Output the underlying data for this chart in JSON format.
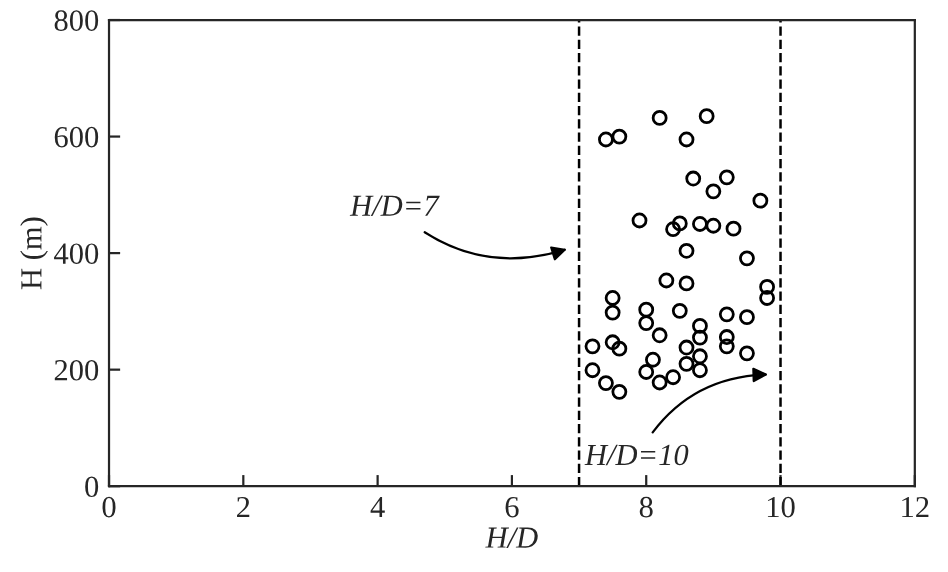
{
  "chart_data": {
    "type": "scatter",
    "xlabel": "H/D",
    "ylabel": "H (m)",
    "xlim": [
      0,
      12
    ],
    "ylim": [
      0,
      800
    ],
    "xticks": [
      0,
      2,
      4,
      6,
      8,
      10,
      12
    ],
    "yticks": [
      0,
      200,
      400,
      600,
      800
    ],
    "grid": false,
    "marker": "circle",
    "series": [
      {
        "color": "#000000",
        "x": [
          7.4,
          7.6,
          8.2,
          8.9,
          8.6,
          8.7,
          9.2,
          9.0,
          9.7,
          7.9,
          8.5,
          8.4,
          8.8,
          9.0,
          9.3,
          8.6,
          9.5,
          8.3,
          8.6,
          9.8,
          9.8,
          7.5,
          7.5,
          8.0,
          8.5,
          9.2,
          9.5,
          8.0,
          8.8,
          8.2,
          8.8,
          9.2,
          9.2,
          7.2,
          7.5,
          7.6,
          8.6,
          8.8,
          9.5,
          8.1,
          8.6,
          7.2,
          8.0,
          8.8,
          7.4,
          8.2,
          8.4,
          7.6
        ],
        "values": [
          595,
          600,
          632,
          635,
          595,
          528,
          530,
          506,
          490,
          456,
          451,
          441,
          450,
          447,
          442,
          404,
          391,
          353,
          348,
          342,
          323,
          323,
          298,
          303,
          301,
          295,
          290,
          280,
          275,
          259,
          255,
          256,
          240,
          240,
          247,
          236,
          238,
          223,
          228,
          217,
          210,
          199,
          196,
          199,
          177,
          178,
          187,
          162
        ]
      }
    ],
    "ref_lines": [
      {
        "axis": "x",
        "value": 7,
        "color": "#000000",
        "line_style": "dashed"
      },
      {
        "axis": "x",
        "value": 10,
        "color": "#000000",
        "line_style": "dashed"
      }
    ],
    "annotations": [
      {
        "text": "H/D=7",
        "x": 6.9,
        "y": 410
      },
      {
        "text": "H/D=10",
        "x": 9.9,
        "y": 192
      }
    ]
  }
}
